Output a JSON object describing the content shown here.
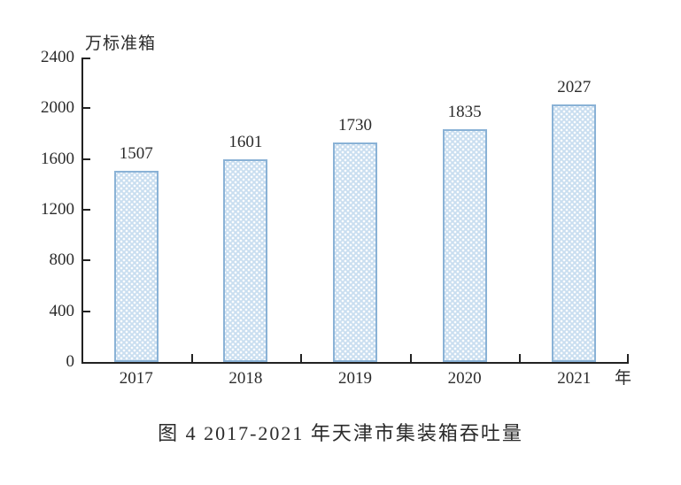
{
  "chart_data": {
    "type": "bar",
    "title": "",
    "categories": [
      "2017",
      "2018",
      "2019",
      "2020",
      "2021"
    ],
    "values": [
      1507,
      1601,
      1730,
      1835,
      2027
    ],
    "xlabel": "年",
    "ylabel": "万标准箱",
    "ylim": [
      0,
      2400
    ],
    "yticks": [
      0,
      400,
      800,
      1200,
      1600,
      2000,
      2400
    ],
    "grid": false,
    "legend": null,
    "bar_style": "dotted-lattice-pattern"
  },
  "caption": "图 4  2017-2021 年天津市集装箱吞吐量",
  "colors": {
    "bar_fill": "#c9def0",
    "bar_border": "#8ab2d6",
    "axis": "#222222",
    "text": "#2b2b2b",
    "background": "#ffffff"
  }
}
